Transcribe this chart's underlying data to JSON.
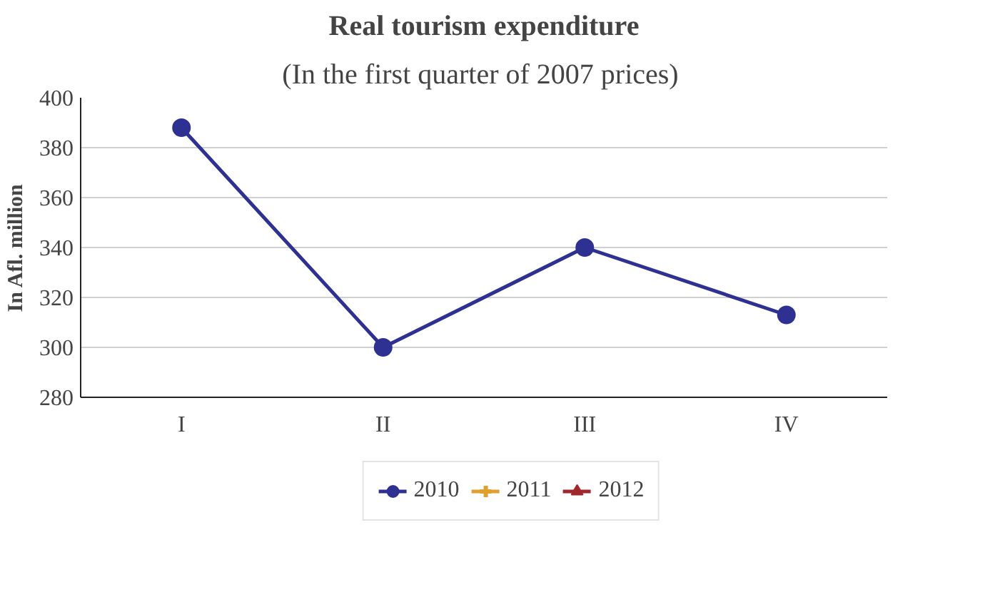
{
  "chart_data": {
    "type": "line",
    "title": "Real tourism expenditure",
    "subtitle": "(In the first quarter of  2007 prices)",
    "ylabel": "In Afl. million",
    "categories": [
      "I",
      "II",
      "III",
      "IV"
    ],
    "series": [
      {
        "name": "2010",
        "color": "#2e3192",
        "marker": "circle",
        "values": [
          388,
          300,
          340,
          313
        ]
      },
      {
        "name": "2011",
        "color": "#e0a030",
        "marker": "cross",
        "values": [
          null,
          null,
          null,
          null
        ]
      },
      {
        "name": "2012",
        "color": "#a0282c",
        "marker": "triangle",
        "values": [
          null,
          null,
          null,
          null
        ]
      }
    ],
    "ylim": [
      280,
      400
    ],
    "yticks": [
      280,
      300,
      320,
      340,
      360,
      380,
      400
    ],
    "grid": "y",
    "legend": "bottom",
    "line_style": "solid"
  }
}
